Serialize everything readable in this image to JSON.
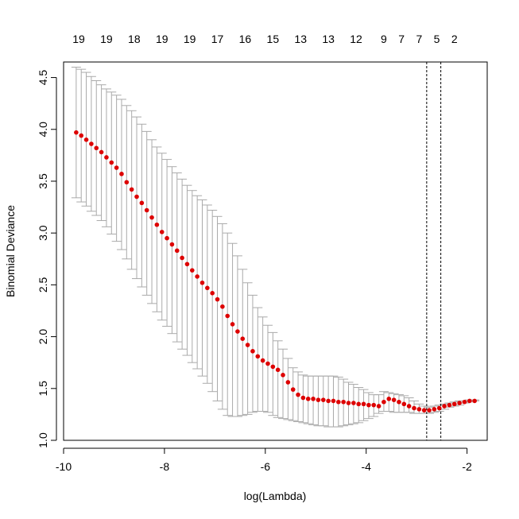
{
  "chart_data": {
    "type": "scatter",
    "xlabel": "log(Lambda)",
    "ylabel": "Binomial Deviance",
    "xlim": [
      -10.0,
      -1.6
    ],
    "ylim": [
      1.0,
      4.65
    ],
    "x_ticks": [
      -10,
      -8,
      -6,
      -4,
      -2
    ],
    "x_tick_labels": [
      "-10",
      "-8",
      "-6",
      "-4",
      "-2"
    ],
    "y_ticks": [
      1.0,
      1.5,
      2.0,
      2.5,
      3.0,
      3.5,
      4.0,
      4.5
    ],
    "y_tick_labels": [
      "1.0",
      "1.5",
      "2.0",
      "2.5",
      "3.0",
      "3.5",
      "4.0",
      "4.5"
    ],
    "top_axis": {
      "positions": [
        -9.7,
        -9.15,
        -8.6,
        -8.05,
        -7.5,
        -6.95,
        -6.4,
        -5.85,
        -5.3,
        -4.75,
        -4.2,
        -3.65,
        -3.3,
        -2.95,
        -2.6,
        -2.25
      ],
      "labels": [
        "19",
        "19",
        "18",
        "19",
        "19",
        "17",
        "16",
        "15",
        "13",
        "13",
        "12",
        "9",
        "7",
        "7",
        "5",
        "2"
      ]
    },
    "reference_lines_x": [
      -2.8,
      -2.52
    ],
    "point_color": "#dd0000",
    "errorbar_color": "#aaaaaa",
    "series": [
      {
        "x": [
          -9.75,
          -9.65,
          -9.55,
          -9.45,
          -9.35,
          -9.25,
          -9.15,
          -9.05,
          -8.95,
          -8.85,
          -8.75,
          -8.65,
          -8.55,
          -8.45,
          -8.35,
          -8.25,
          -8.15,
          -8.05,
          -7.95,
          -7.85,
          -7.75,
          -7.65,
          -7.55,
          -7.45,
          -7.35,
          -7.25,
          -7.15,
          -7.05,
          -6.95,
          -6.85,
          -6.75,
          -6.65,
          -6.55,
          -6.45,
          -6.35,
          -6.25,
          -6.15,
          -6.05,
          -5.95,
          -5.85,
          -5.75,
          -5.65,
          -5.55,
          -5.45,
          -5.35,
          -5.25,
          -5.15,
          -5.05,
          -4.95,
          -4.85,
          -4.75,
          -4.65,
          -4.55,
          -4.45,
          -4.35,
          -4.25,
          -4.15,
          -4.05,
          -3.95,
          -3.85,
          -3.75,
          -3.65,
          -3.55,
          -3.45,
          -3.35,
          -3.25,
          -3.15,
          -3.05,
          -2.95,
          -2.85,
          -2.75,
          -2.65,
          -2.55,
          -2.45,
          -2.35,
          -2.25,
          -2.15,
          -2.05,
          -1.95,
          -1.85
        ],
        "y": [
          3.97,
          3.94,
          3.9,
          3.86,
          3.82,
          3.78,
          3.73,
          3.68,
          3.63,
          3.57,
          3.49,
          3.42,
          3.35,
          3.29,
          3.22,
          3.15,
          3.08,
          3.01,
          2.95,
          2.89,
          2.83,
          2.76,
          2.7,
          2.64,
          2.58,
          2.52,
          2.47,
          2.42,
          2.36,
          2.29,
          2.2,
          2.12,
          2.05,
          1.98,
          1.92,
          1.86,
          1.81,
          1.77,
          1.74,
          1.71,
          1.68,
          1.63,
          1.56,
          1.49,
          1.44,
          1.41,
          1.4,
          1.4,
          1.39,
          1.39,
          1.38,
          1.38,
          1.37,
          1.37,
          1.36,
          1.36,
          1.35,
          1.35,
          1.34,
          1.34,
          1.33,
          1.37,
          1.4,
          1.39,
          1.37,
          1.35,
          1.33,
          1.31,
          1.3,
          1.29,
          1.29,
          1.3,
          1.31,
          1.33,
          1.34,
          1.35,
          1.36,
          1.37,
          1.38,
          1.38
        ],
        "lower": [
          3.34,
          3.3,
          3.26,
          3.21,
          3.17,
          3.12,
          3.06,
          2.99,
          2.92,
          2.84,
          2.75,
          2.65,
          2.56,
          2.48,
          2.4,
          2.32,
          2.24,
          2.16,
          2.1,
          2.03,
          1.95,
          1.88,
          1.82,
          1.75,
          1.69,
          1.62,
          1.55,
          1.47,
          1.38,
          1.3,
          1.24,
          1.23,
          1.23,
          1.24,
          1.25,
          1.27,
          1.28,
          1.28,
          1.27,
          1.24,
          1.22,
          1.21,
          1.2,
          1.19,
          1.18,
          1.17,
          1.16,
          1.15,
          1.14,
          1.14,
          1.13,
          1.13,
          1.13,
          1.14,
          1.15,
          1.16,
          1.17,
          1.19,
          1.21,
          1.23,
          1.26,
          1.28,
          1.28,
          1.27,
          1.27,
          1.27,
          1.27,
          1.26,
          1.26,
          1.26,
          1.26,
          1.27,
          1.28,
          1.3,
          1.32,
          1.33,
          1.34,
          1.36,
          1.37,
          1.38
        ],
        "upper": [
          4.6,
          4.58,
          4.55,
          4.51,
          4.47,
          4.43,
          4.39,
          4.36,
          4.33,
          4.29,
          4.23,
          4.18,
          4.12,
          4.05,
          3.98,
          3.9,
          3.83,
          3.77,
          3.71,
          3.64,
          3.58,
          3.52,
          3.46,
          3.41,
          3.36,
          3.32,
          3.27,
          3.22,
          3.16,
          3.09,
          3.0,
          2.9,
          2.78,
          2.65,
          2.52,
          2.4,
          2.28,
          2.19,
          2.11,
          2.04,
          1.96,
          1.88,
          1.79,
          1.7,
          1.66,
          1.63,
          1.62,
          1.62,
          1.62,
          1.62,
          1.62,
          1.62,
          1.61,
          1.59,
          1.56,
          1.54,
          1.51,
          1.49,
          1.46,
          1.44,
          1.44,
          1.47,
          1.46,
          1.45,
          1.44,
          1.43,
          1.41,
          1.38,
          1.35,
          1.33,
          1.32,
          1.33,
          1.34,
          1.35,
          1.36,
          1.37,
          1.38,
          1.38,
          1.39,
          1.39
        ]
      }
    ]
  }
}
